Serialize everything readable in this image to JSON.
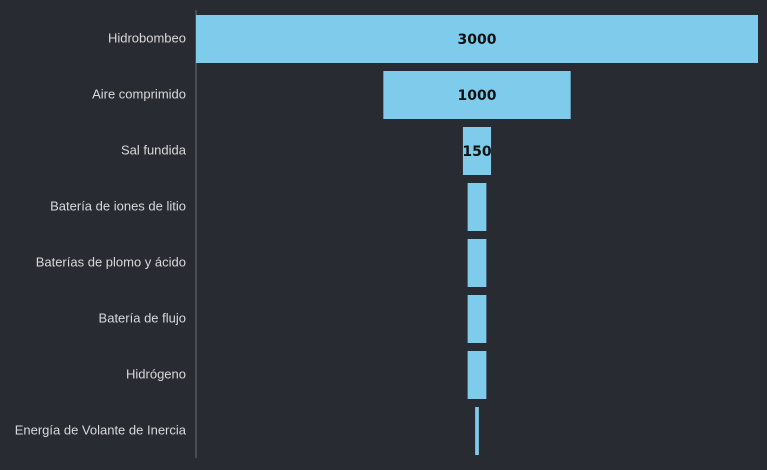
{
  "chart_data": {
    "type": "bar",
    "subtype": "funnel",
    "orientation": "horizontal",
    "categories": [
      "Hidrobombeo",
      "Aire comprimido",
      "Sal fundida",
      "Batería de iones de litio",
      "Baterías de plomo y ácido",
      "Batería de flujo",
      "Hidrógeno",
      "Energía de Volante de Inercia"
    ],
    "values": [
      3000,
      1000,
      150,
      100,
      100,
      100,
      100,
      20
    ],
    "data_labels": [
      "3000",
      "1000",
      "150",
      "",
      "",
      "",
      "",
      ""
    ],
    "title": "",
    "xlabel": "",
    "ylabel": "",
    "grid": false,
    "legend": "none",
    "colors": {
      "bar": "#7ecbec",
      "background": "#292b33",
      "axis": "#6b6e76",
      "label": "#d9d9d9",
      "data_label": "#111111"
    }
  }
}
